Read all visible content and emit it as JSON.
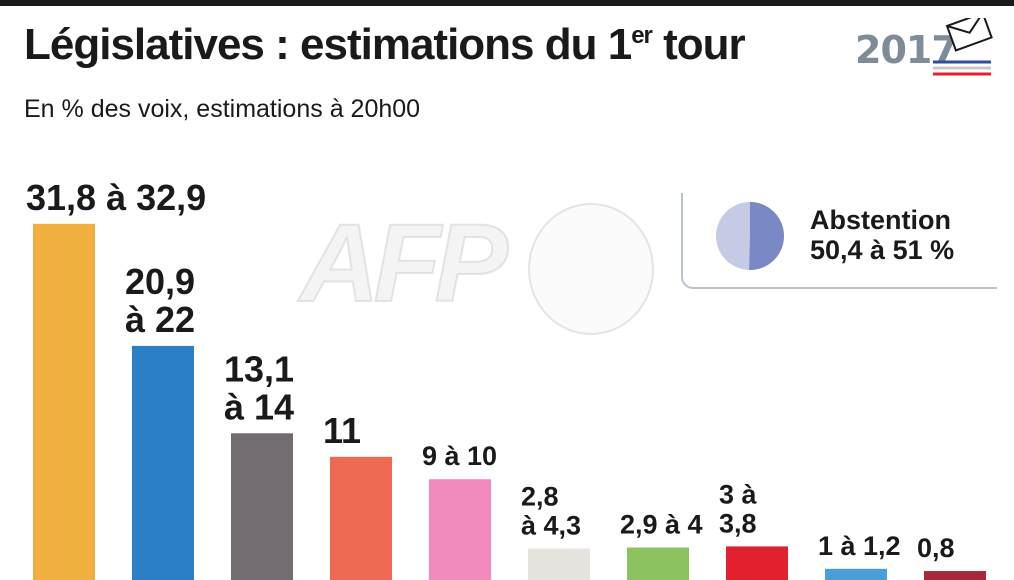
{
  "header": {
    "title_main": "Législatives :  estimations du 1",
    "title_sup": "er",
    "title_end": " tour",
    "subtitle": "En % des voix, estimations à 20h00"
  },
  "logo": {
    "year": "2017",
    "icon": "ballot-envelope-icon"
  },
  "watermark": {
    "text": "AFP"
  },
  "abstention": {
    "label": "Abstention",
    "value": "50,4 à 51 %",
    "low": 50.4,
    "high": 51,
    "colors": {
      "share": "#7a88c6",
      "rest": "#c5cbe5"
    }
  },
  "chart_data": {
    "type": "bar",
    "title": "Législatives :  estimations du 1er tour",
    "subtitle": "En % des voix, estimations à 20h00",
    "ylim": [
      0,
      33
    ],
    "grid": false,
    "bars": [
      {
        "label_lines": [
          "31,8 à 32,9"
        ],
        "low": 31.8,
        "high": 32.9,
        "color": "#f0b040",
        "large": true
      },
      {
        "label_lines": [
          "20,9",
          "à 22"
        ],
        "low": 20.9,
        "high": 22,
        "color": "#2b7fc4",
        "large": true
      },
      {
        "label_lines": [
          "13,1",
          "à 14"
        ],
        "low": 13.1,
        "high": 14,
        "color": "#736d72",
        "large": true
      },
      {
        "label_lines": [
          "11"
        ],
        "low": 11,
        "high": 11,
        "color": "#ef6a53",
        "large": true
      },
      {
        "label_lines": [
          "9 à 10"
        ],
        "low": 9,
        "high": 10,
        "color": "#f28bbd",
        "large": false
      },
      {
        "label_lines": [
          "2,8",
          "à 4,3"
        ],
        "low": 2.8,
        "high": 4.3,
        "color": "#e6e2dd",
        "large": false
      },
      {
        "label_lines": [
          "2,9 à 4"
        ],
        "low": 2.9,
        "high": 4,
        "color": "#8cc35f",
        "large": false
      },
      {
        "label_lines": [
          "3 à",
          "3,8"
        ],
        "low": 3,
        "high": 3.8,
        "color": "#e3202e",
        "large": false
      },
      {
        "label_lines": [
          "1 à 1,2"
        ],
        "low": 1,
        "high": 1.2,
        "color": "#4a9fd8",
        "large": false
      },
      {
        "label_lines": [
          "0,8"
        ],
        "low": 0.8,
        "high": 0.8,
        "color": "#a8283a",
        "large": false
      }
    ]
  }
}
